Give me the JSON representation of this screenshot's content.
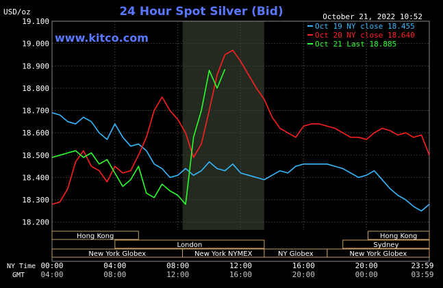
{
  "chart_data": {
    "type": "line",
    "title": "24 Hour Spot Silver (Bid)",
    "unit_label": "USD/oz",
    "watermark": "www.kitco.com",
    "timestamp": "October 21, 2022 10:52",
    "ylim": [
      18.15,
      19.1
    ],
    "y_ticks": [
      "19.100",
      "19.000",
      "18.900",
      "18.800",
      "18.700",
      "18.600",
      "18.500",
      "18.400",
      "18.300",
      "18.200"
    ],
    "x_axis": {
      "ny_label": "NY Time",
      "gmt_label": "GMT",
      "ny_ticks": [
        "00:00",
        "04:00",
        "08:00",
        "12:00",
        "16:00",
        "20:00",
        "23:59"
      ],
      "gmt_ticks": [
        "04:00",
        "08:00",
        "12:00",
        "16:00",
        "20:00",
        "00:00",
        "03:59"
      ]
    },
    "xlim_hours": [
      0,
      24
    ],
    "shaded_session_hours": [
      8.3,
      13.5
    ],
    "sessions": [
      {
        "label": "Hong Kong",
        "row": 0,
        "spans": [
          [
            0,
            5.5
          ],
          [
            20.1,
            24
          ]
        ]
      },
      {
        "label": "London",
        "row": 1,
        "spans": [
          [
            4,
            13.5
          ]
        ]
      },
      {
        "label": "Sydney",
        "row": 1,
        "spans": [
          [
            18.5,
            24
          ]
        ]
      },
      {
        "label": "New York Globex",
        "row": 2,
        "spans": [
          [
            0,
            8.3
          ],
          [
            17.5,
            24
          ]
        ]
      },
      {
        "label": "New York NYMEX",
        "row": 2,
        "spans": [
          [
            8.3,
            13.5
          ]
        ]
      },
      {
        "label": "NY Globex",
        "row": 2,
        "spans": [
          [
            13.5,
            17.5
          ]
        ]
      }
    ],
    "legend_position": "top-right",
    "series": [
      {
        "name": "Oct 19 NY close 18.455",
        "color": "#36b9ff",
        "x": [
          0,
          0.5,
          1,
          1.5,
          2,
          2.5,
          3,
          3.5,
          4,
          4.5,
          5,
          5.5,
          6,
          6.5,
          7,
          7.5,
          8,
          8.5,
          9,
          9.5,
          10,
          10.5,
          11,
          11.5,
          12,
          12.5,
          13,
          13.5,
          14,
          14.5,
          15,
          15.5,
          16,
          16.5,
          17,
          17.5,
          18,
          18.5,
          19,
          19.5,
          20,
          20.5,
          21,
          21.5,
          22,
          22.5,
          23,
          23.5,
          24
        ],
        "y": [
          18.69,
          18.68,
          18.65,
          18.64,
          18.67,
          18.65,
          18.6,
          18.57,
          18.64,
          18.58,
          18.54,
          18.55,
          18.52,
          18.46,
          18.44,
          18.4,
          18.41,
          18.44,
          18.41,
          18.43,
          18.47,
          18.44,
          18.43,
          18.46,
          18.42,
          18.41,
          18.4,
          18.39,
          18.41,
          18.43,
          18.42,
          18.45,
          18.46,
          18.46,
          18.46,
          18.46,
          18.45,
          18.44,
          18.42,
          18.4,
          18.41,
          18.43,
          18.39,
          18.35,
          18.32,
          18.3,
          18.27,
          18.25,
          18.28
        ]
      },
      {
        "name": "Oct 20 NY close 18.640",
        "color": "#ff2020",
        "x": [
          0,
          0.5,
          1,
          1.5,
          2,
          2.5,
          3,
          3.5,
          4,
          4.5,
          5,
          5.5,
          6,
          6.5,
          7,
          7.5,
          8,
          8.5,
          9,
          9.5,
          10,
          10.5,
          11,
          11.5,
          12,
          12.5,
          13,
          13.5,
          14,
          14.5,
          15,
          15.5,
          16,
          16.5,
          17,
          17.5,
          18,
          18.5,
          19,
          19.5,
          20,
          20.5,
          21,
          21.5,
          22,
          22.5,
          23,
          23.5,
          24
        ],
        "y": [
          18.28,
          18.29,
          18.35,
          18.47,
          18.52,
          18.45,
          18.43,
          18.38,
          18.45,
          18.42,
          18.43,
          18.5,
          18.58,
          18.7,
          18.76,
          18.7,
          18.66,
          18.6,
          18.49,
          18.55,
          18.7,
          18.86,
          18.95,
          18.97,
          18.92,
          18.86,
          18.8,
          18.75,
          18.67,
          18.62,
          18.6,
          18.58,
          18.63,
          18.64,
          18.64,
          18.63,
          18.62,
          18.6,
          18.58,
          18.58,
          18.57,
          18.6,
          18.62,
          18.61,
          18.59,
          18.6,
          18.58,
          18.59,
          18.5
        ]
      },
      {
        "name": "Oct 21 Last 18.885",
        "color": "#2cff2c",
        "x": [
          0,
          0.5,
          1,
          1.5,
          2,
          2.5,
          3,
          3.5,
          4,
          4.5,
          5,
          5.5,
          6,
          6.5,
          7,
          7.5,
          8,
          8.5,
          9,
          9.5,
          10,
          10.5,
          11
        ],
        "y": [
          18.49,
          18.5,
          18.51,
          18.52,
          18.49,
          18.51,
          18.46,
          18.48,
          18.42,
          18.36,
          18.39,
          18.45,
          18.33,
          18.31,
          18.37,
          18.34,
          18.32,
          18.28,
          18.58,
          18.7,
          18.88,
          18.8,
          18.885
        ]
      }
    ]
  }
}
